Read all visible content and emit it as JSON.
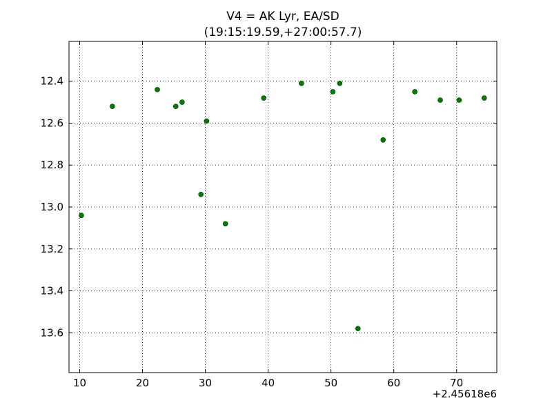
{
  "chart_data": {
    "type": "scatter",
    "title": "V4 = AK Lyr, EA/SD",
    "subtitle": "(19:15:19.59,+27:00:57.7)",
    "x_offset_label": "+2.45618e6",
    "color": "#008000",
    "x": [
      10.27,
      15.2,
      22.36,
      25.3,
      26.3,
      30.2,
      29.3,
      33.2,
      39.3,
      45.3,
      50.3,
      51.4,
      54.3,
      58.3,
      63.35,
      67.4,
      70.4,
      74.4
    ],
    "values": [
      13.04,
      12.52,
      12.44,
      12.52,
      12.5,
      12.59,
      12.94,
      13.08,
      12.48,
      12.41,
      12.45,
      12.41,
      13.58,
      12.68,
      12.45,
      12.49,
      12.49,
      12.48
    ],
    "xlim": [
      8.3,
      76.4
    ],
    "xticks": [
      10,
      20,
      30,
      40,
      50,
      60,
      70
    ],
    "ylim": [
      12.21,
      13.79
    ],
    "y_inverted": true,
    "yticks": [
      12.4,
      12.6,
      12.8,
      {
        "value": 13,
        "label": "13.0"
      },
      13.2,
      13.4,
      13.6
    ],
    "grid": true
  }
}
